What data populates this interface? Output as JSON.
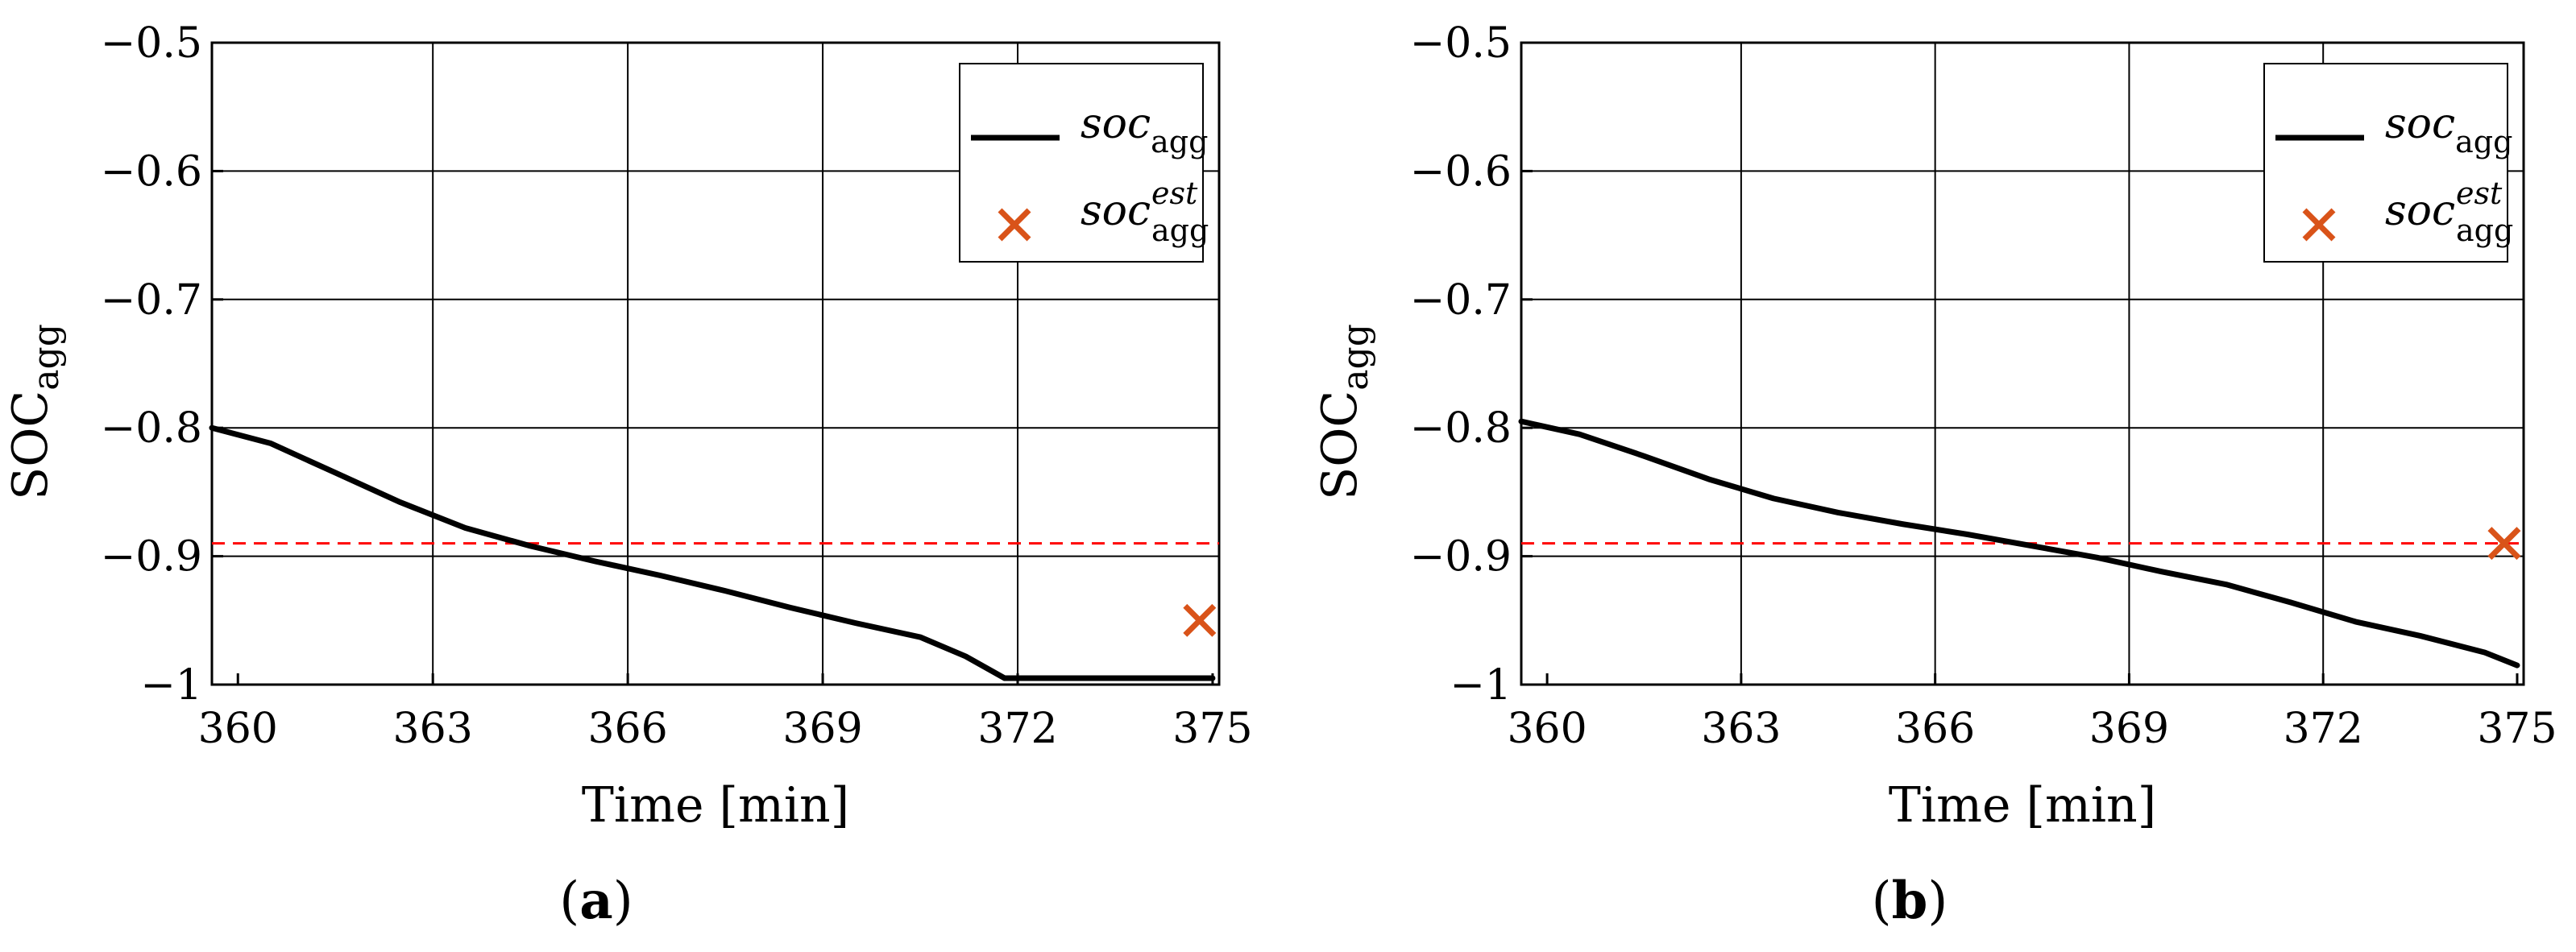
{
  "colors": {
    "line": "#000000",
    "marker": "#D95319",
    "reference": "#ff0000"
  },
  "chart_data": [
    {
      "type": "line",
      "subplot_label": "(a)",
      "xlabel": "Time [min]",
      "ylabel_main": "SOC",
      "ylabel_sub": "agg",
      "xlim": [
        359.6,
        375.1
      ],
      "ylim": [
        -1.0,
        -0.5
      ],
      "xticks": [
        360,
        363,
        366,
        369,
        372,
        375
      ],
      "yticks": [
        -0.5,
        -0.6,
        -0.7,
        -0.8,
        -0.9,
        -1.0
      ],
      "ytick_labels": [
        "−0.5",
        "−0.6",
        "−0.7",
        "−0.8",
        "−0.9",
        "−1"
      ],
      "vgrid": [
        363,
        366,
        369,
        372
      ],
      "hgrid": [
        -0.6,
        -0.7,
        -0.8,
        -0.9
      ],
      "reference_line": -0.89,
      "legend_position": "top-right",
      "series": [
        {
          "name": "soc",
          "name_sub": "agg",
          "kind": "line",
          "x": [
            359.6,
            360.5,
            361.5,
            362.5,
            363.5,
            364.5,
            365.5,
            366.5,
            367.5,
            368.5,
            369.5,
            370.5,
            371.2,
            371.8,
            372.5,
            373.5,
            374.5,
            375.0
          ],
          "y": [
            -0.8,
            -0.812,
            -0.835,
            -0.858,
            -0.878,
            -0.892,
            -0.904,
            -0.915,
            -0.927,
            -0.94,
            -0.952,
            -0.963,
            -0.978,
            -0.995,
            -0.995,
            -0.995,
            -0.995,
            -0.995
          ]
        },
        {
          "name": "soc",
          "name_sub": "agg",
          "name_sup": "est",
          "kind": "marker",
          "x": [
            374.8
          ],
          "y": [
            -0.95
          ]
        }
      ]
    },
    {
      "type": "line",
      "subplot_label": "(b)",
      "xlabel": "Time [min]",
      "ylabel_main": "SOC",
      "ylabel_sub": "agg",
      "xlim": [
        359.6,
        375.1
      ],
      "ylim": [
        -1.0,
        -0.5
      ],
      "xticks": [
        360,
        363,
        366,
        369,
        372,
        375
      ],
      "yticks": [
        -0.5,
        -0.6,
        -0.7,
        -0.8,
        -0.9,
        -1.0
      ],
      "ytick_labels": [
        "−0.5",
        "−0.6",
        "−0.7",
        "−0.8",
        "−0.9",
        "−1"
      ],
      "vgrid": [
        363,
        366,
        369,
        372
      ],
      "hgrid": [
        -0.6,
        -0.7,
        -0.8,
        -0.9
      ],
      "reference_line": -0.89,
      "legend_position": "top-right",
      "series": [
        {
          "name": "soc",
          "name_sub": "agg",
          "kind": "line",
          "x": [
            359.6,
            360.5,
            361.5,
            362.5,
            363.5,
            364.5,
            365.5,
            366.5,
            367.5,
            368.5,
            369.5,
            370.5,
            371.5,
            372.5,
            373.5,
            374.5,
            375.0
          ],
          "y": [
            -0.795,
            -0.805,
            -0.822,
            -0.84,
            -0.855,
            -0.866,
            -0.875,
            -0.883,
            -0.892,
            -0.901,
            -0.912,
            -0.922,
            -0.936,
            -0.951,
            -0.962,
            -0.975,
            -0.985
          ]
        },
        {
          "name": "soc",
          "name_sub": "agg",
          "name_sup": "est",
          "kind": "marker",
          "x": [
            374.8
          ],
          "y": [
            -0.89
          ]
        }
      ]
    }
  ]
}
